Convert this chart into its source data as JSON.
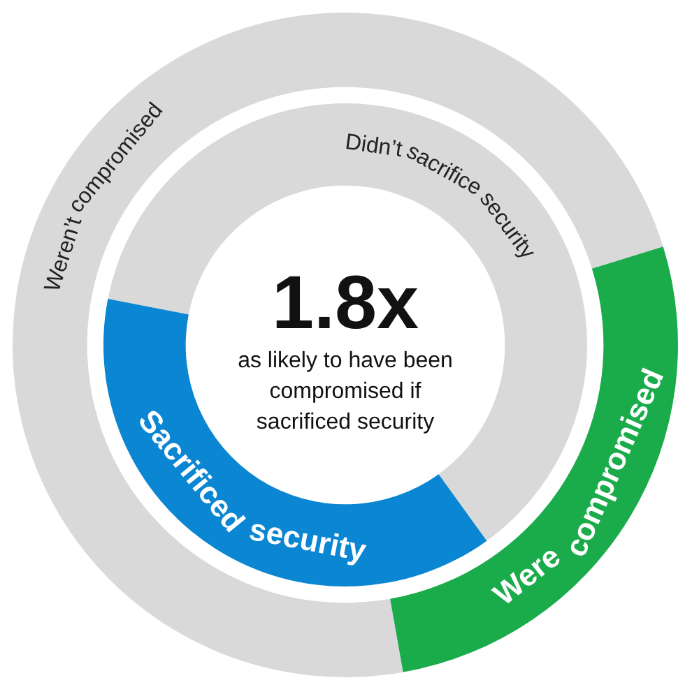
{
  "chart_data": [
    {
      "type": "donut",
      "categories": [
        "Weren’t compromised",
        "Were compromised"
      ],
      "values": [
        73,
        27
      ],
      "colors": [
        "#d9d9d9",
        "#1aab4b"
      ],
      "legend": false
    },
    {
      "type": "donut",
      "title": "1.8x",
      "subtitle": "as likely to have been compromised if sacrificed security",
      "categories": [
        "Didn’t sacrifice security",
        "Sacrificed security"
      ],
      "values": [
        62,
        38
      ],
      "colors": [
        "#d9d9d9",
        "#0a86d2"
      ],
      "legend": false
    }
  ]
}
